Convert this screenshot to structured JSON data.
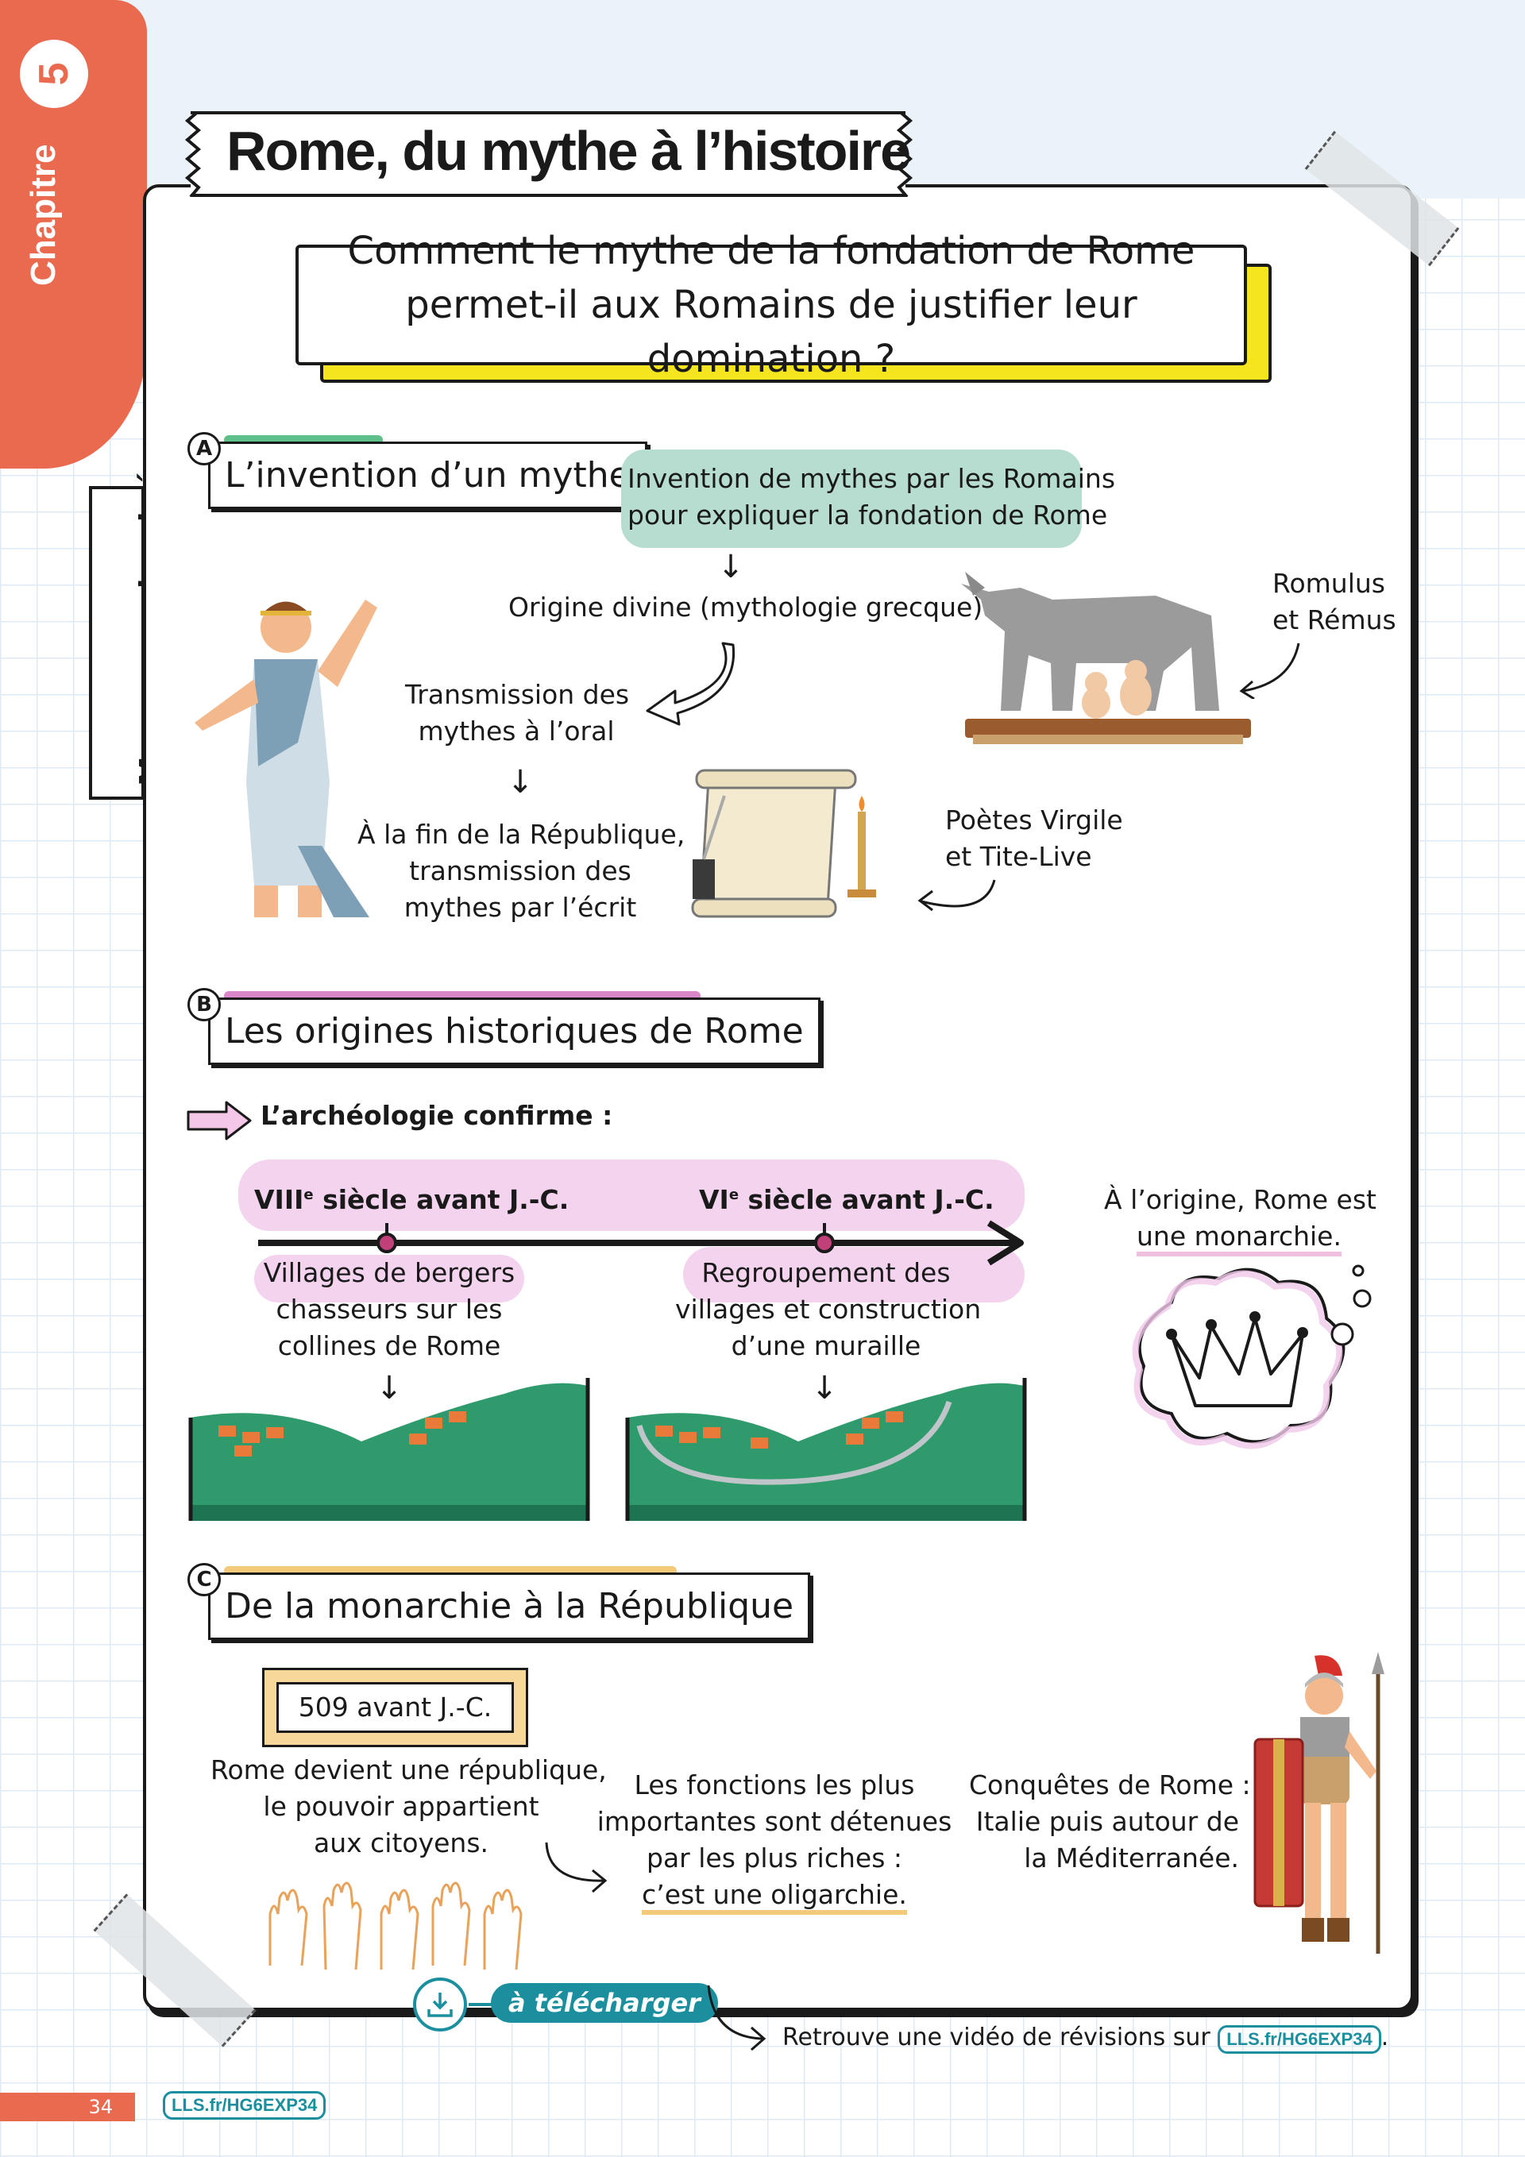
{
  "chapter": {
    "label": "Chapitre",
    "number": "5"
  },
  "side_label": "Mon cours dessiné",
  "title": "Rome, du mythe à l’histoire",
  "question": "Comment le mythe de la fondation de Rome permet-il aux Romains de justifier leur domination ?",
  "section_a": {
    "letter": "A",
    "heading": "L’invention d’un mythe",
    "invention_line1": "Invention de mythes par les Romains",
    "invention_line2": "pour expliquer la fondation de Rome",
    "origin": "Origine divine (mythologie grecque)",
    "romulus_line1": "Romulus",
    "romulus_line2": "et Rémus",
    "oral_line1": "Transmission des",
    "oral_line2": "mythes à l’oral",
    "written_line1": "À la fin de la République,",
    "written_line2": "transmission des",
    "written_line3": "mythes par l’écrit",
    "poets_line1": "Poètes Virgile",
    "poets_line2": "et Tite-Live"
  },
  "section_b": {
    "letter": "B",
    "heading": "Les origines historiques de Rome",
    "archeology": "L’archéologie confirme :",
    "date1_main": "VIII",
    "date1_sup": "e",
    "date1_rest": " siècle avant J.-C.",
    "date2_main": "VI",
    "date2_sup": "e",
    "date2_rest": " siècle avant J.-C.",
    "villages_line1": "Villages de bergers",
    "villages_line2": "chasseurs sur les",
    "villages_line3": "collines de Rome",
    "regroup_line1": "Regroupement des",
    "regroup_line2": "villages et construction",
    "regroup_line3": "d’une muraille",
    "monarchy_line1": "À l’origine, Rome est",
    "monarchy_line2": "une monarchie."
  },
  "section_c": {
    "letter": "C",
    "heading": "De la monarchie à la République",
    "date": "509 avant J.-C.",
    "republic_line1": "Rome devient une république,",
    "republic_line2": "le pouvoir appartient",
    "republic_line3": "aux citoyens.",
    "functions_line1": "Les fonctions les plus",
    "functions_line2": "importantes sont détenues",
    "functions_line3": "par les plus riches :",
    "functions_line4": "c’est une oligarchie.",
    "conquest_line1": "Conquêtes de Rome :",
    "conquest_line2": "Italie puis autour de",
    "conquest_line3": "la Méditerranée."
  },
  "download_label": "à télécharger",
  "video_text": "Retrouve une vidéo de révisions sur",
  "video_link": "LLS.fr/HG6EXP34",
  "footer": {
    "page_number": "34",
    "link": "LLS.fr/HG6EXP34"
  },
  "colors": {
    "coral": "#ea6a50",
    "yellow": "#f5e51e",
    "green_highlight": "#b6ddd0",
    "pink": "#f0c8ea",
    "teal": "#1c8f9e"
  }
}
